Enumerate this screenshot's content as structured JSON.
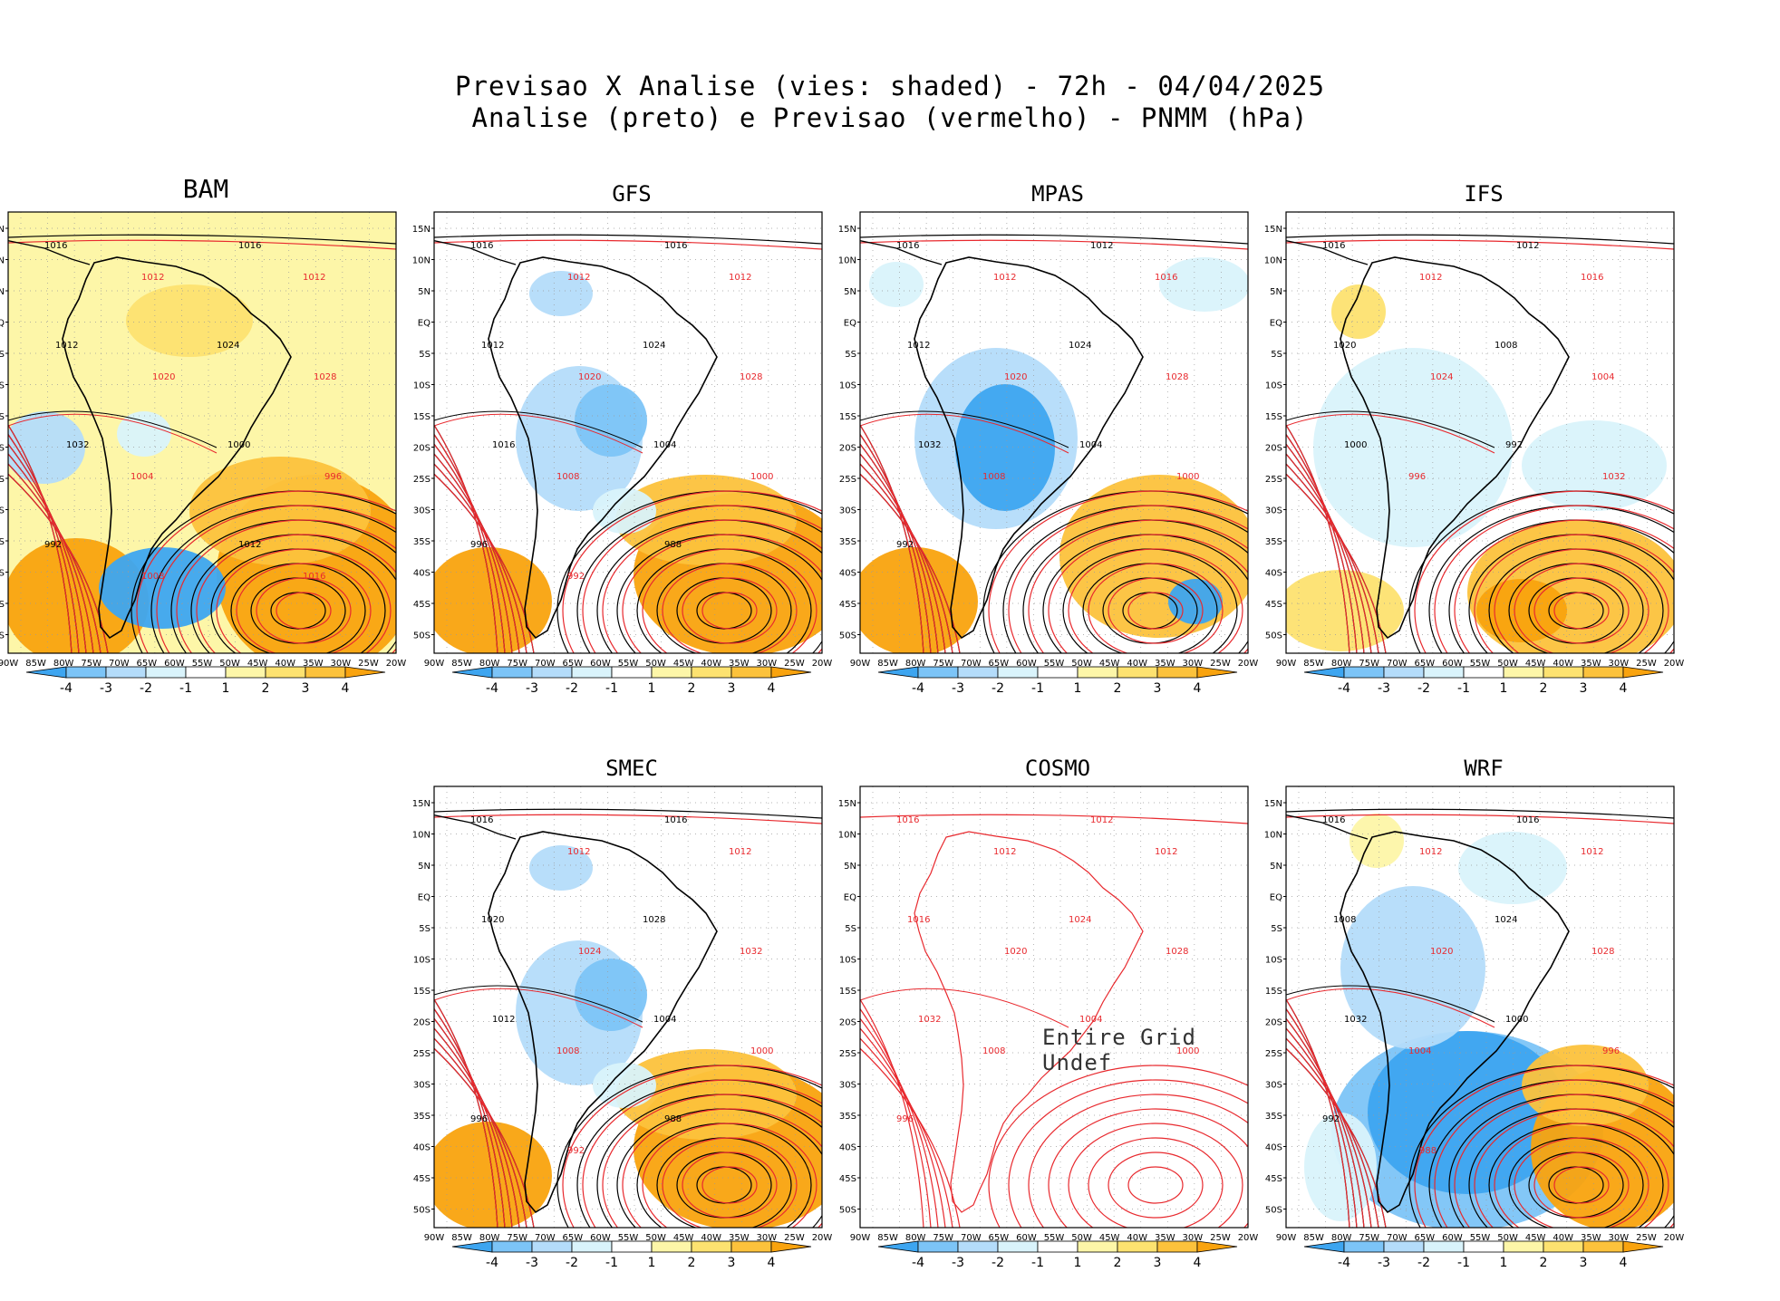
{
  "header": {
    "line1": "Previsao X Analise (vies: shaded) - 72h - 04/04/2025",
    "line2": "Analise (preto) e Previsao (vermelho) - PNMM (hPa)"
  },
  "axis": {
    "lat_labels": [
      "15N",
      "10N",
      "5N",
      "EQ",
      "5S",
      "10S",
      "15S",
      "20S",
      "25S",
      "30S",
      "35S",
      "40S",
      "45S",
      "50S"
    ],
    "lon_labels": [
      "90W",
      "85W",
      "80W",
      "75W",
      "70W",
      "65W",
      "60W",
      "55W",
      "50W",
      "45W",
      "40W",
      "35W",
      "30W",
      "25W",
      "20W"
    ]
  },
  "colorbar": {
    "labels": [
      "-4",
      "-3",
      "-2",
      "-1",
      "1",
      "2",
      "3",
      "4"
    ],
    "colors": [
      "#3da5f0",
      "#7cc4f7",
      "#b4dcfa",
      "#d9f3fb",
      "#ffffff",
      "#fdf6a8",
      "#fde270",
      "#fcc23c",
      "#f9a30e"
    ]
  },
  "colors": {
    "analysis_contour": "#000000",
    "forecast_contour": "#e8292e",
    "coast": "#000000"
  },
  "panels": [
    {
      "name": "BAM",
      "bias": "pos",
      "contours": [
        "1016",
        "1012",
        "1016",
        "1012",
        "1012",
        "1020",
        "1024",
        "1028",
        "1032",
        "1004",
        "1000",
        "996",
        "992",
        "1008",
        "1012",
        "1016"
      ]
    },
    {
      "name": "GFS",
      "bias": "mixed",
      "contours": [
        "1016",
        "1012",
        "1016",
        "1012",
        "1012",
        "1020",
        "1024",
        "1028",
        "1016",
        "1008",
        "1004",
        "1000",
        "996",
        "992",
        "988"
      ]
    },
    {
      "name": "MPAS",
      "bias": "neg",
      "contours": [
        "1016",
        "1012",
        "1012",
        "1016",
        "1012",
        "1020",
        "1024",
        "1028",
        "1032",
        "1008",
        "1004",
        "1000",
        "992"
      ]
    },
    {
      "name": "IFS",
      "bias": "light",
      "contours": [
        "1016",
        "1012",
        "1012",
        "1016",
        "1020",
        "1024",
        "1008",
        "1004",
        "1000",
        "996",
        "992",
        "1032"
      ]
    },
    {
      "name": "SMEC",
      "bias": "mixed",
      "contours": [
        "1016",
        "1012",
        "1016",
        "1012",
        "1020",
        "1024",
        "1028",
        "1032",
        "1012",
        "1008",
        "1004",
        "1000",
        "996",
        "992",
        "988"
      ]
    },
    {
      "name": "COSMO",
      "bias": "none",
      "undef_text": "Entire Grid Undef",
      "contours": [
        "1016",
        "1012",
        "1012",
        "1012",
        "1016",
        "1020",
        "1024",
        "1028",
        "1032",
        "1008",
        "1004",
        "1000",
        "996"
      ]
    },
    {
      "name": "WRF",
      "bias": "strongneg",
      "contours": [
        "1016",
        "1012",
        "1016",
        "1012",
        "1008",
        "1020",
        "1024",
        "1028",
        "1032",
        "1004",
        "1000",
        "996",
        "992",
        "988"
      ]
    }
  ]
}
